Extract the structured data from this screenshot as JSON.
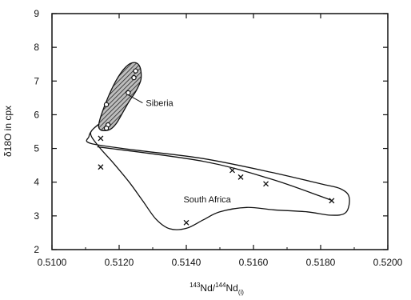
{
  "chart_data": {
    "type": "scatter",
    "title": "",
    "xlabel_parts": {
      "sup1": "143",
      "mid1": "Nd/",
      "sup2": "144",
      "mid2": "Nd",
      "sub": "(i)"
    },
    "ylabel": "δ18O in cpx",
    "xlim": [
      0.51,
      0.52
    ],
    "ylim": [
      2,
      9
    ],
    "xticks": [
      "0.5100",
      "0.5120",
      "0.5140",
      "0.5160",
      "0.5180",
      "0.5200"
    ],
    "yticks": [
      "2",
      "3",
      "4",
      "5",
      "6",
      "7",
      "8",
      "9"
    ],
    "grid": false,
    "annotations": [
      {
        "text": "Siberia",
        "x": 0.5127,
        "y": 6.35
      },
      {
        "text": "South Africa",
        "x": 0.51382,
        "y": 3.5
      }
    ],
    "series": [
      {
        "name": "Siberia",
        "marker": "open-circle",
        "points": [
          {
            "x": 0.51249,
            "y": 7.3
          },
          {
            "x": 0.51244,
            "y": 7.1
          },
          {
            "x": 0.51227,
            "y": 6.65
          },
          {
            "x": 0.51162,
            "y": 6.3
          },
          {
            "x": 0.51167,
            "y": 5.7
          },
          {
            "x": 0.51162,
            "y": 5.6
          }
        ]
      },
      {
        "name": "South Africa",
        "marker": "x",
        "points": [
          {
            "x": 0.51145,
            "y": 5.3
          },
          {
            "x": 0.51145,
            "y": 4.45
          },
          {
            "x": 0.51537,
            "y": 4.35
          },
          {
            "x": 0.51562,
            "y": 4.15
          },
          {
            "x": 0.51637,
            "y": 3.95
          },
          {
            "x": 0.51833,
            "y": 3.45
          },
          {
            "x": 0.514,
            "y": 2.8
          }
        ]
      }
    ],
    "regions": [
      {
        "name": "siberia-field",
        "fill": "hatched",
        "outline": [
          [
            0.5114,
            5.75
          ],
          [
            0.5116,
            6.35
          ],
          [
            0.5119,
            7.0
          ],
          [
            0.5122,
            7.42
          ],
          [
            0.51245,
            7.55
          ],
          [
            0.51262,
            7.42
          ],
          [
            0.51265,
            7.05
          ],
          [
            0.5125,
            6.7
          ],
          [
            0.5123,
            6.4
          ],
          [
            0.5121,
            6.05
          ],
          [
            0.5119,
            5.72
          ],
          [
            0.5117,
            5.55
          ],
          [
            0.51145,
            5.55
          ]
        ]
      },
      {
        "name": "south-africa-field",
        "fill": "none",
        "outline": [
          [
            0.5114,
            5.72
          ],
          [
            0.5112,
            5.55
          ],
          [
            0.5111,
            5.35
          ],
          [
            0.51115,
            5.15
          ],
          [
            0.5125,
            4.95
          ],
          [
            0.5145,
            4.7
          ],
          [
            0.5165,
            4.3
          ],
          [
            0.518,
            3.95
          ],
          [
            0.5186,
            3.8
          ],
          [
            0.51885,
            3.55
          ],
          [
            0.51875,
            3.1
          ],
          [
            0.5183,
            3.02
          ],
          [
            0.5176,
            3.12
          ],
          [
            0.5166,
            3.18
          ],
          [
            0.5158,
            3.25
          ],
          [
            0.515,
            3.12
          ],
          [
            0.5145,
            2.88
          ],
          [
            0.514,
            2.63
          ],
          [
            0.5135,
            2.62
          ],
          [
            0.5131,
            2.9
          ],
          [
            0.5127,
            3.45
          ],
          [
            0.5123,
            4.0
          ],
          [
            0.5118,
            4.6
          ],
          [
            0.5114,
            5.05
          ],
          [
            0.51115,
            5.45
          ]
        ]
      },
      {
        "name": "south-africa-inner",
        "fill": "none",
        "outline": [
          [
            0.51135,
            5.05
          ],
          [
            0.5145,
            4.62
          ],
          [
            0.5165,
            4.1
          ],
          [
            0.518,
            3.58
          ],
          [
            0.51835,
            3.45
          ]
        ]
      }
    ],
    "colors": {
      "ink": "#111111",
      "hatch": "#222222",
      "hatch_bg": "#bdbdbd"
    }
  }
}
